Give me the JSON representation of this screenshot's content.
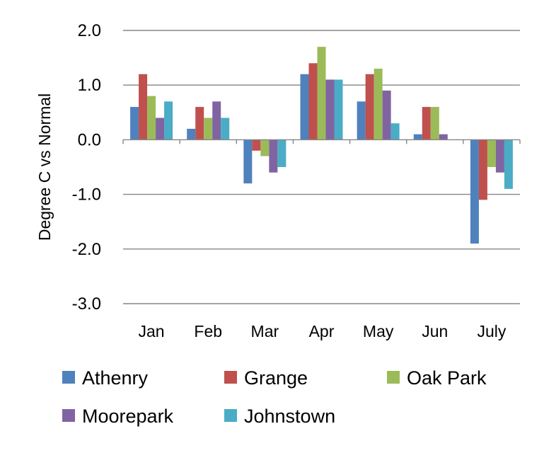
{
  "chart_data": {
    "type": "bar",
    "ylabel": "Degree C vs Normal",
    "xlabel": "",
    "ylim": [
      -3.0,
      2.0
    ],
    "yticks": [
      "2.0",
      "1.0",
      "0.0",
      "-1.0",
      "-2.0",
      "-3.0"
    ],
    "ytick_values": [
      2,
      1,
      0,
      -1,
      -2,
      -3
    ],
    "grid": true,
    "legend_position": "bottom",
    "categories": [
      "Jan",
      "Feb",
      "Mar",
      "Apr",
      "May",
      "Jun",
      "July"
    ],
    "series": [
      {
        "name": "Athenry",
        "color": "#4F81BD",
        "values": [
          0.6,
          0.2,
          -0.8,
          1.2,
          0.7,
          0.1,
          -1.9
        ]
      },
      {
        "name": "Grange",
        "color": "#C0504D",
        "values": [
          1.2,
          0.6,
          -0.2,
          1.4,
          1.2,
          0.6,
          -1.1
        ]
      },
      {
        "name": "Oak Park",
        "color": "#9BBB59",
        "values": [
          0.8,
          0.4,
          -0.3,
          1.7,
          1.3,
          0.6,
          -0.5
        ]
      },
      {
        "name": "Moorepark",
        "color": "#8064A2",
        "values": [
          0.4,
          0.7,
          -0.6,
          1.1,
          0.9,
          0.1,
          -0.6
        ]
      },
      {
        "name": "Johnstown",
        "color": "#4BACC6",
        "values": [
          0.7,
          0.4,
          -0.5,
          1.1,
          0.3,
          0.0,
          -0.9
        ]
      }
    ]
  }
}
